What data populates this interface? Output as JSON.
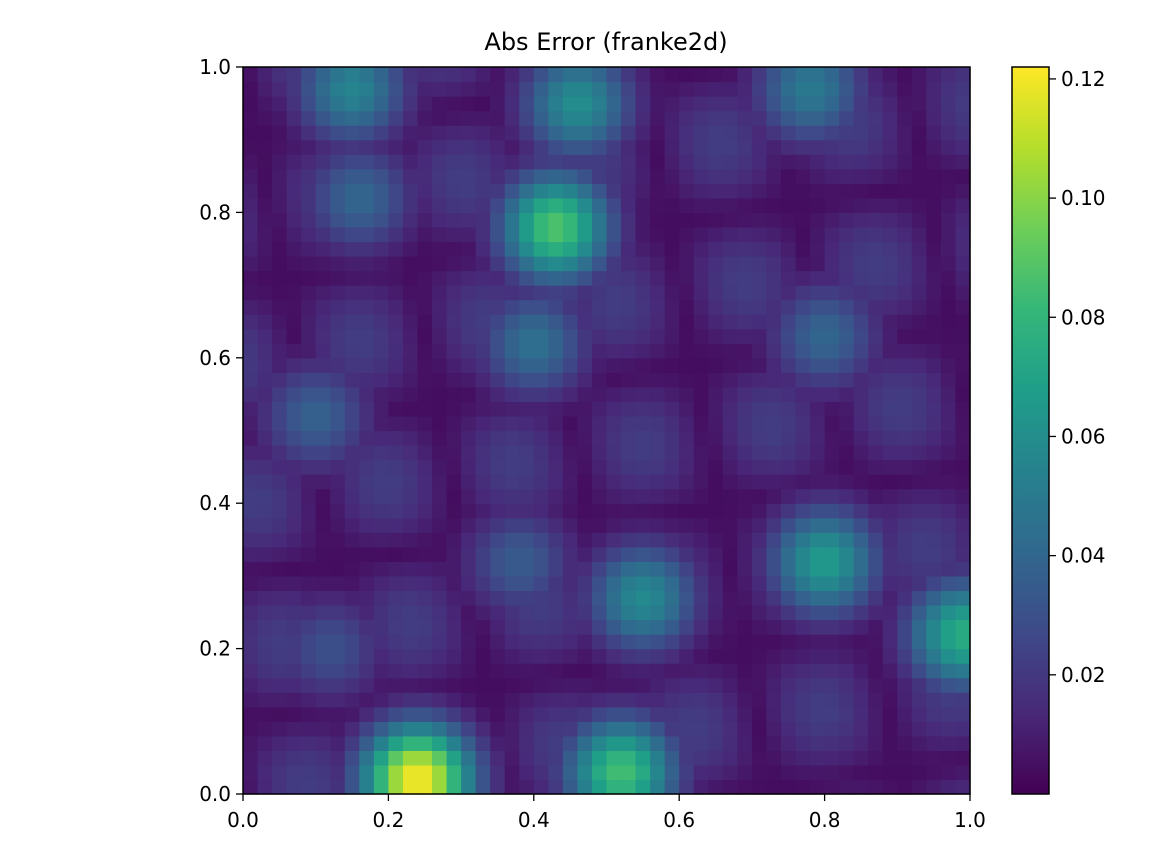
{
  "chart_data": {
    "type": "heatmap",
    "title": "Abs Error (franke2d)",
    "xlabel": "",
    "ylabel": "",
    "xlim": [
      0.0,
      1.0
    ],
    "ylim": [
      0.0,
      1.0
    ],
    "x_ticks": [
      "0.0",
      "0.2",
      "0.4",
      "0.6",
      "0.8",
      "1.0"
    ],
    "y_ticks": [
      "0.0",
      "0.2",
      "0.4",
      "0.6",
      "0.8",
      "1.0"
    ],
    "colorbar": {
      "colormap": "viridis",
      "range": [
        0.0,
        0.122
      ],
      "ticks": [
        "0.02",
        "0.04",
        "0.06",
        "0.08",
        "0.10",
        "0.12"
      ]
    },
    "grid": false,
    "hotspots": [
      {
        "x": 0.24,
        "y": 0.02,
        "value": 0.122
      },
      {
        "x": 0.52,
        "y": 0.03,
        "value": 0.085
      },
      {
        "x": 0.43,
        "y": 0.78,
        "value": 0.088
      },
      {
        "x": 0.8,
        "y": 0.32,
        "value": 0.066
      },
      {
        "x": 0.99,
        "y": 0.22,
        "value": 0.075
      },
      {
        "x": 0.46,
        "y": 0.95,
        "value": 0.06
      },
      {
        "x": 0.55,
        "y": 0.27,
        "value": 0.058
      },
      {
        "x": 0.15,
        "y": 0.97,
        "value": 0.055
      },
      {
        "x": 0.78,
        "y": 0.97,
        "value": 0.05
      },
      {
        "x": 0.38,
        "y": 0.32,
        "value": 0.035
      },
      {
        "x": 0.12,
        "y": 0.2,
        "value": 0.03
      },
      {
        "x": 0.16,
        "y": 0.82,
        "value": 0.04
      },
      {
        "x": 0.1,
        "y": 0.52,
        "value": 0.038
      },
      {
        "x": 0.8,
        "y": 0.63,
        "value": 0.04
      },
      {
        "x": 0.4,
        "y": 0.62,
        "value": 0.045
      }
    ]
  }
}
